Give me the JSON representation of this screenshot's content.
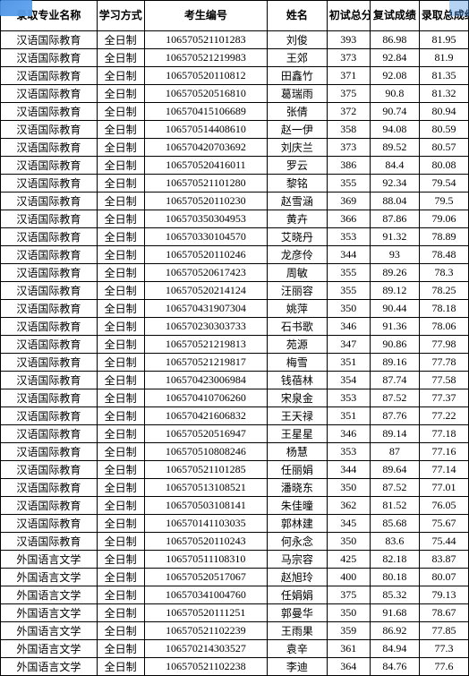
{
  "columns": [
    "录取专业名称",
    "学习方式",
    "考生编号",
    "姓名",
    "初试总分",
    "复试成绩",
    "录取总成绩"
  ],
  "col_classes": [
    "col-major",
    "col-mode",
    "col-id",
    "col-name",
    "col-score1",
    "col-score2",
    "col-score3"
  ],
  "rows": [
    [
      "汉语国际教育",
      "全日制",
      "106570521101283",
      "刘俊",
      "393",
      "86.98",
      "81.95"
    ],
    [
      "汉语国际教育",
      "全日制",
      "106570521219983",
      "王郊",
      "373",
      "92.84",
      "81.9"
    ],
    [
      "汉语国际教育",
      "全日制",
      "106570520110812",
      "田鑫竹",
      "371",
      "92.08",
      "81.35"
    ],
    [
      "汉语国际教育",
      "全日制",
      "106570520516810",
      "葛瑞雨",
      "375",
      "90.8",
      "81.32"
    ],
    [
      "汉语国际教育",
      "全日制",
      "106570415106689",
      "张倩",
      "372",
      "90.74",
      "80.94"
    ],
    [
      "汉语国际教育",
      "全日制",
      "106570514408610",
      "赵一伊",
      "358",
      "94.08",
      "80.59"
    ],
    [
      "汉语国际教育",
      "全日制",
      "106570420703692",
      "刘庆兰",
      "373",
      "89.52",
      "80.57"
    ],
    [
      "汉语国际教育",
      "全日制",
      "106570520416011",
      "罗云",
      "386",
      "84.4",
      "80.08"
    ],
    [
      "汉语国际教育",
      "全日制",
      "106570521101280",
      "黎铭",
      "355",
      "92.34",
      "79.54"
    ],
    [
      "汉语国际教育",
      "全日制",
      "106570520110230",
      "赵雪涵",
      "369",
      "88.04",
      "79.5"
    ],
    [
      "汉语国际教育",
      "全日制",
      "106570350304953",
      "黄卉",
      "366",
      "87.86",
      "79.06"
    ],
    [
      "汉语国际教育",
      "全日制",
      "106570330104570",
      "艾晓丹",
      "353",
      "91.32",
      "78.89"
    ],
    [
      "汉语国际教育",
      "全日制",
      "106570520110246",
      "龙彦伶",
      "344",
      "93",
      "78.48"
    ],
    [
      "汉语国际教育",
      "全日制",
      "106570520617423",
      "周敏",
      "355",
      "89.26",
      "78.3"
    ],
    [
      "汉语国际教育",
      "全日制",
      "106570520214124",
      "汪丽容",
      "355",
      "89.12",
      "78.25"
    ],
    [
      "汉语国际教育",
      "全日制",
      "106570431907304",
      "姚萍",
      "350",
      "90.44",
      "78.18"
    ],
    [
      "汉语国际教育",
      "全日制",
      "106570230303733",
      "石书歌",
      "346",
      "91.36",
      "78.06"
    ],
    [
      "汉语国际教育",
      "全日制",
      "106570521219813",
      "苑源",
      "347",
      "90.86",
      "77.98"
    ],
    [
      "汉语国际教育",
      "全日制",
      "106570521219817",
      "梅雪",
      "351",
      "89.16",
      "77.78"
    ],
    [
      "汉语国际教育",
      "全日制",
      "106570423006984",
      "钱蓓林",
      "354",
      "87.74",
      "77.58"
    ],
    [
      "汉语国际教育",
      "全日制",
      "106570410706260",
      "宋泉金",
      "353",
      "87.52",
      "77.37"
    ],
    [
      "汉语国际教育",
      "全日制",
      "106570421606832",
      "王天禄",
      "351",
      "87.76",
      "77.22"
    ],
    [
      "汉语国际教育",
      "全日制",
      "106570520516947",
      "王星星",
      "346",
      "89.14",
      "77.18"
    ],
    [
      "汉语国际教育",
      "全日制",
      "106570510808246",
      "杨慧",
      "353",
      "87",
      "77.16"
    ],
    [
      "汉语国际教育",
      "全日制",
      "106570521101285",
      "任丽娟",
      "344",
      "89.64",
      "77.14"
    ],
    [
      "汉语国际教育",
      "全日制",
      "106570513108521",
      "潘晓东",
      "350",
      "87.52",
      "77.01"
    ],
    [
      "汉语国际教育",
      "全日制",
      "106570503108141",
      "朱佳曈",
      "362",
      "81.52",
      "76.05"
    ],
    [
      "汉语国际教育",
      "全日制",
      "106570141103035",
      "郭林建",
      "345",
      "85.68",
      "75.67"
    ],
    [
      "汉语国际教育",
      "全日制",
      "106570520110243",
      "何永念",
      "350",
      "83.6",
      "75.44"
    ],
    [
      "外国语言文学",
      "全日制",
      "106570511108310",
      "马宗容",
      "425",
      "82.18",
      "83.87"
    ],
    [
      "外国语言文学",
      "全日制",
      "106570520517067",
      "赵旭玲",
      "400",
      "80.18",
      "80.07"
    ],
    [
      "外国语言文学",
      "全日制",
      "106570341004760",
      "任娟娟",
      "375",
      "85.32",
      "79.13"
    ],
    [
      "外国语言文学",
      "全日制",
      "106570520111251",
      "郭曼华",
      "350",
      "91.68",
      "78.67"
    ],
    [
      "外国语言文学",
      "全日制",
      "106570521102239",
      "王雨果",
      "359",
      "86.92",
      "77.85"
    ],
    [
      "外国语言文学",
      "全日制",
      "106570214303527",
      "袁辛",
      "361",
      "84.94",
      "77.3"
    ],
    [
      "外国语言文学",
      "全日制",
      "106570521102238",
      "李迪",
      "364",
      "84.76",
      "77.6"
    ]
  ],
  "watermark_rows": [
    16,
    17
  ]
}
